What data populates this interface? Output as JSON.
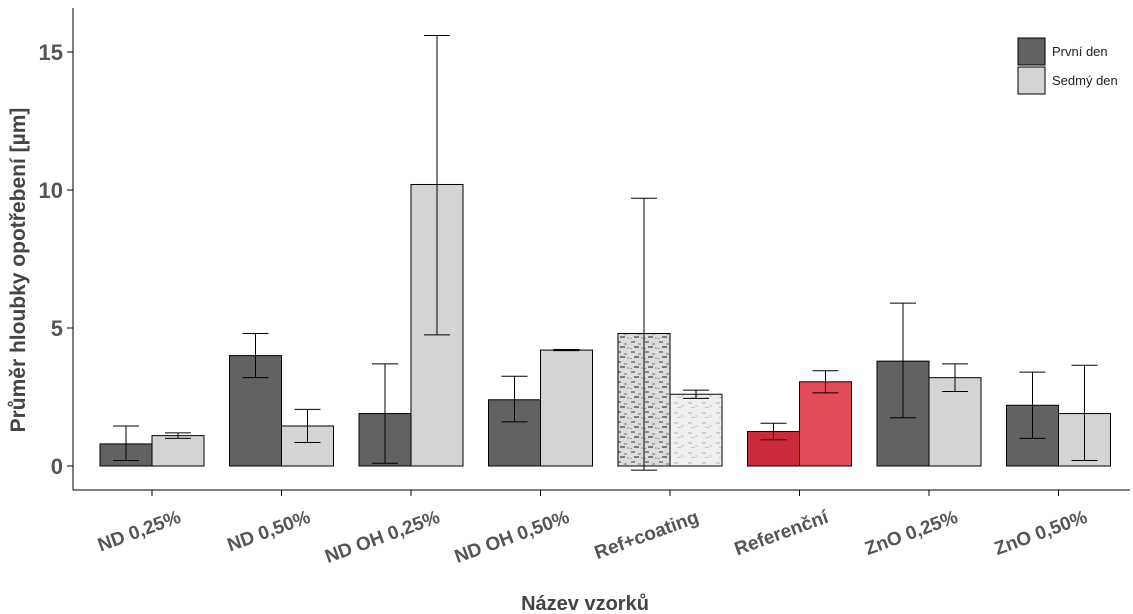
{
  "chart_data": {
    "type": "bar",
    "title": "",
    "xlabel": "Název vzorků",
    "ylabel": "Průměr hloubky opotřebení [µm]",
    "ylim": [
      0,
      16
    ],
    "yticks": [
      0,
      5,
      10,
      15
    ],
    "grid": false,
    "legend_position": "top-right",
    "categories": [
      "ND 0,25%",
      "ND 0,50%",
      "ND OH 0,25%",
      "ND OH 0,50%",
      "Ref+coating",
      "Referenční",
      "ZnO 0,25%",
      "ZnO 0,50%"
    ],
    "series": [
      {
        "name": "První den",
        "color": "#626262",
        "values": [
          0.8,
          4.0,
          1.9,
          2.4,
          4.8,
          1.25,
          3.8,
          2.2
        ],
        "error_low": [
          0.2,
          3.2,
          0.1,
          1.6,
          -0.15,
          0.95,
          1.75,
          1.0
        ],
        "error_high": [
          1.45,
          4.8,
          3.7,
          3.25,
          9.7,
          1.55,
          5.9,
          3.4
        ]
      },
      {
        "name": "Sedmý den",
        "color": "#d4d4d4",
        "values": [
          1.1,
          1.45,
          10.2,
          4.2,
          2.6,
          3.05,
          3.2,
          1.9
        ],
        "error_low": [
          1.0,
          0.85,
          4.75,
          4.18,
          2.45,
          2.65,
          2.7,
          0.2
        ],
        "error_high": [
          1.2,
          2.05,
          15.6,
          4.22,
          2.75,
          3.45,
          3.7,
          3.65
        ]
      }
    ],
    "highlight": {
      "category": "Referenční",
      "colors": [
        "#cc2b3a",
        "#e34b57"
      ]
    },
    "textured": {
      "category": "Ref+coating"
    }
  }
}
